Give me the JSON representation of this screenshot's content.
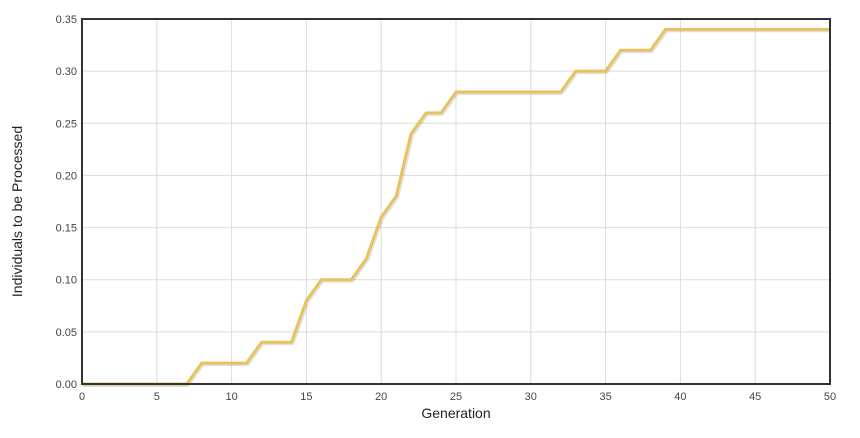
{
  "chart_data": {
    "type": "line",
    "title": "",
    "xlabel": "Generation",
    "ylabel": "Individuals to be Processed",
    "xlim": [
      0,
      50
    ],
    "ylim": [
      0,
      0.35
    ],
    "x_ticks": [
      "0",
      "5",
      "10",
      "15",
      "20",
      "25",
      "30",
      "35",
      "40",
      "45",
      "50"
    ],
    "y_ticks": [
      "0.00",
      "0.05",
      "0.10",
      "0.15",
      "0.20",
      "0.25",
      "0.30",
      "0.35"
    ],
    "x_tick_values": [
      0,
      5,
      10,
      15,
      20,
      25,
      30,
      35,
      40,
      45,
      50
    ],
    "y_tick_values": [
      0,
      0.05,
      0.1,
      0.15,
      0.2,
      0.25,
      0.3,
      0.35
    ],
    "grid": true,
    "series": [
      {
        "color": "#e8c35c",
        "x": [
          0,
          1,
          2,
          3,
          4,
          5,
          6,
          7,
          8,
          9,
          10,
          11,
          12,
          13,
          14,
          15,
          16,
          17,
          18,
          19,
          20,
          21,
          22,
          23,
          24,
          25,
          26,
          27,
          28,
          29,
          30,
          31,
          32,
          33,
          34,
          35,
          36,
          37,
          38,
          39,
          40,
          41,
          42,
          43,
          44,
          45,
          46,
          47,
          48,
          49,
          50
        ],
        "y": [
          0,
          0,
          0,
          0,
          0,
          0,
          0,
          0,
          0.02,
          0.02,
          0.02,
          0.02,
          0.04,
          0.04,
          0.04,
          0.08,
          0.1,
          0.1,
          0.1,
          0.12,
          0.16,
          0.18,
          0.24,
          0.26,
          0.26,
          0.28,
          0.28,
          0.28,
          0.28,
          0.28,
          0.28,
          0.28,
          0.28,
          0.3,
          0.3,
          0.3,
          0.32,
          0.32,
          0.32,
          0.34,
          0.34,
          0.34,
          0.34,
          0.34,
          0.34,
          0.34,
          0.34,
          0.34,
          0.34,
          0.34,
          0.34
        ]
      }
    ]
  }
}
